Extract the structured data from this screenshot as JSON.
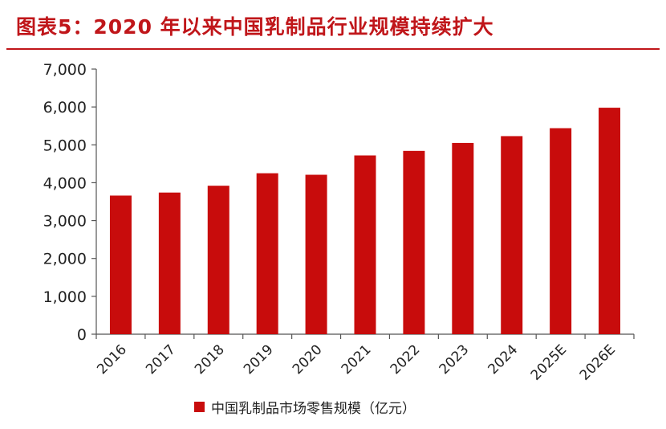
{
  "page": {
    "title": "图表5：2020 年以来中国乳制品行业规模持续扩大"
  },
  "colors": {
    "accent": "#c0161a",
    "bar": "#c80c0c",
    "axis": "#555555",
    "text": "#222222"
  },
  "chart_data": {
    "type": "bar",
    "title": "图表5：2020 年以来中国乳制品行业规模持续扩大",
    "xlabel": "",
    "ylabel": "",
    "categories": [
      "2016",
      "2017",
      "2018",
      "2019",
      "2020",
      "2021",
      "2022",
      "2023",
      "2024",
      "2025E",
      "2026E"
    ],
    "series": [
      {
        "name": "中国乳制品市场零售规模（亿元）",
        "values": [
          3660,
          3740,
          3920,
          4250,
          4210,
          4720,
          4840,
          5050,
          5230,
          5440,
          5980
        ]
      }
    ],
    "ylim": [
      0,
      7000
    ],
    "yticks": [
      0,
      1000,
      2000,
      3000,
      4000,
      5000,
      6000,
      7000
    ],
    "ytick_labels": [
      "0",
      "1,000",
      "2,000",
      "3,000",
      "4,000",
      "5,000",
      "6,000",
      "7,000"
    ],
    "grid": false,
    "legend_position": "bottom"
  }
}
